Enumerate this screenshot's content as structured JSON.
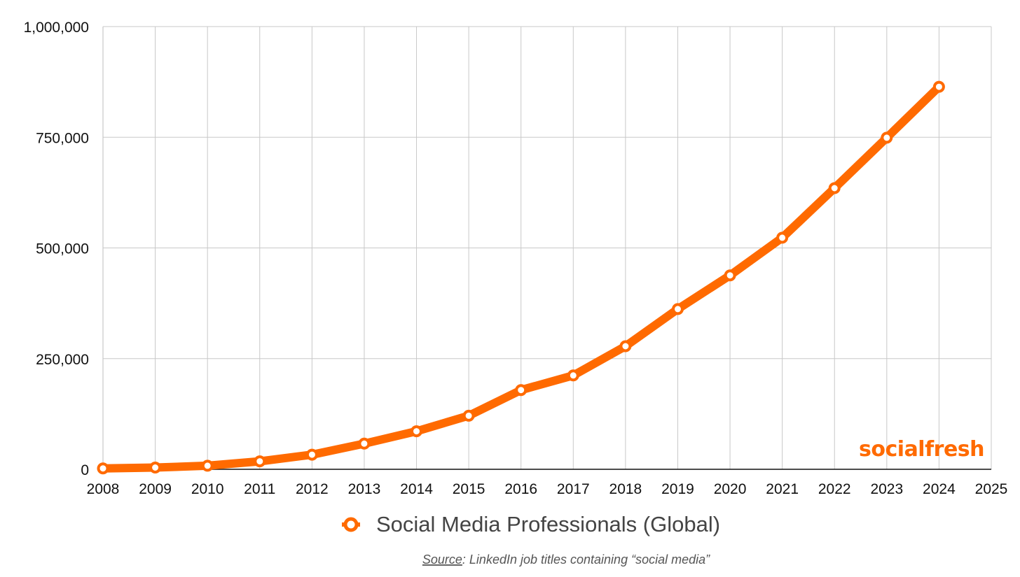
{
  "chart_data": {
    "type": "line",
    "x": [
      2008,
      2009,
      2010,
      2011,
      2012,
      2013,
      2014,
      2015,
      2016,
      2017,
      2018,
      2019,
      2020,
      2021,
      2022,
      2023,
      2024
    ],
    "series": [
      {
        "name": "Social Media Professionals (Global)",
        "values": [
          2000,
          4000,
          8000,
          18000,
          33000,
          58000,
          86000,
          121000,
          179000,
          212000,
          278000,
          362000,
          438000,
          523000,
          635000,
          749000,
          864000
        ],
        "color": "#FF6A00"
      }
    ],
    "xlim": [
      2008,
      2025
    ],
    "ylim": [
      0,
      1000000
    ],
    "x_ticks": [
      "2008",
      "2009",
      "2010",
      "2011",
      "2012",
      "2013",
      "2014",
      "2015",
      "2016",
      "2017",
      "2018",
      "2019",
      "2020",
      "2021",
      "2022",
      "2023",
      "2024",
      "2025"
    ],
    "y_ticks": [
      0,
      250000,
      500000,
      750000,
      1000000
    ],
    "y_tick_labels": [
      "0",
      "250,000",
      "500,000",
      "750,000",
      "1,000,000"
    ],
    "grid": true,
    "legend_position": "bottom-center",
    "title": "",
    "xlabel": "",
    "ylabel": ""
  },
  "legend": {
    "label": "Social Media Professionals (Global)"
  },
  "watermark": {
    "text": "socialfresh",
    "color": "#FF6A00"
  },
  "source": {
    "prefix": "Source",
    "text": ": LinkedIn job titles containing “social media”"
  },
  "colors": {
    "grid": "#C8C8C8",
    "axis": "#111111",
    "line": "#FF6A00",
    "marker_fill": "#FFFFFF"
  }
}
